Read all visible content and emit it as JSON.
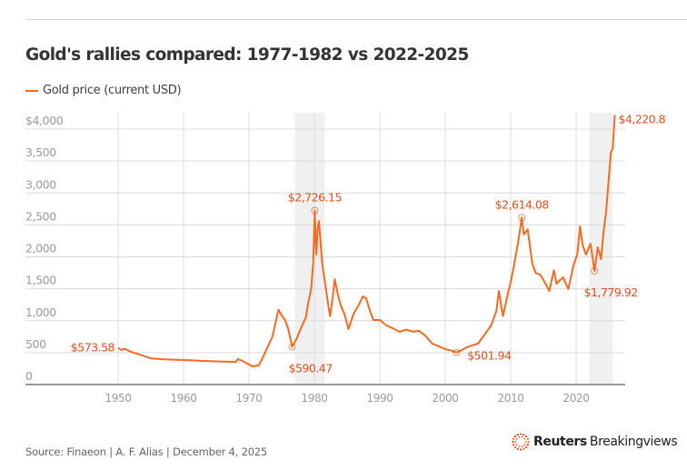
{
  "header": {
    "title": "Gold's rallies compared: 1977-1982 vs 2022-2025",
    "legend_label": "Gold price (current USD)"
  },
  "footer": {
    "source": "Source: Finaeon | A. F. Alias | December 4, 2025",
    "brand_bold": "Reuters",
    "brand_light": "Breakingviews",
    "brand_icon": "reuters-dotted-ring-logo"
  },
  "colors": {
    "line": "#f26b21",
    "annotation": "#e0501a",
    "shade": "#f0f0f0",
    "grid": "#dcdcdc",
    "tick_text": "#9a9a9a",
    "axis": "#999999"
  },
  "chart_data": {
    "type": "line",
    "title": "Gold's rallies compared: 1977-1982 vs 2022-2025",
    "xlabel": "",
    "ylabel": "",
    "xlim": [
      1936,
      2028
    ],
    "ylim": [
      0,
      4000
    ],
    "y_ticks": [
      0,
      500,
      1000,
      1500,
      2000,
      2500,
      3000,
      3500,
      4000
    ],
    "y_tick_labels": [
      "0",
      "500",
      "1,000",
      "1,500",
      "2,000",
      "2,500",
      "3,000",
      "3,500",
      "$4,000"
    ],
    "x_ticks": [
      1950,
      1960,
      1970,
      1980,
      1990,
      2000,
      2010,
      2020
    ],
    "x_tick_labels": [
      "1950",
      "1960",
      "1970",
      "1980",
      "1990",
      "2000",
      "2010",
      "2020"
    ],
    "grid": true,
    "legend": "top-left",
    "shaded_periods": [
      {
        "start": 1977,
        "end": 1982
      },
      {
        "start": 2022,
        "end": 2026
      }
    ],
    "series": [
      {
        "name": "Gold price (current USD)",
        "x": [
          1950,
          1950.5,
          1951,
          1952,
          1953,
          1955,
          1957,
          1960,
          1963,
          1966,
          1968,
          1968.3,
          1969,
          1970.5,
          1971.5,
          1972,
          1973,
          1973.6,
          1974.5,
          1975,
          1975.5,
          1976,
          1976.6,
          1977.3,
          1978,
          1978.7,
          1979,
          1979.5,
          1979.8,
          1980.05,
          1980.2,
          1980.3,
          1980.5,
          1980.7,
          1981,
          1981.2,
          1981.8,
          1982.1,
          1982.4,
          1982.8,
          1983.1,
          1983.6,
          1984,
          1984.6,
          1985.2,
          1986,
          1986.8,
          1987.4,
          1987.9,
          1988.5,
          1989,
          1990,
          1991,
          1992,
          1993,
          1994,
          1995,
          1996,
          1997,
          1998,
          1999,
          2000,
          2001,
          2001.7,
          2002.5,
          2003,
          2004,
          2005,
          2006,
          2007,
          2007.8,
          2008.2,
          2008.8,
          2009.5,
          2010,
          2010.5,
          2011.1,
          2011.7,
          2012,
          2012.6,
          2013.3,
          2013.8,
          2014.5,
          2015,
          2015.9,
          2016.6,
          2017,
          2018,
          2018.8,
          2019.6,
          2020.2,
          2020.6,
          2021,
          2021.5,
          2022.2,
          2022.5,
          2022.8,
          2023.3,
          2023.8,
          2024.2,
          2024.6,
          2025.0,
          2025.3,
          2025.6,
          2025.9
        ],
        "values": [
          573.58,
          540,
          560,
          510,
          480,
          410,
          395,
          385,
          370,
          360,
          355,
          400,
          370,
          285,
          300,
          400,
          620,
          755,
          1170,
          1080,
          1010,
          870,
          590.47,
          720,
          900,
          1050,
          1250,
          1500,
          1890,
          2726.15,
          2200,
          2035,
          2450,
          2560,
          2150,
          1890,
          1465,
          1250,
          1070,
          1380,
          1650,
          1400,
          1250,
          1100,
          870,
          1110,
          1250,
          1380,
          1350,
          1150,
          1010,
          1010,
          925,
          880,
          825,
          860,
          830,
          840,
          760,
          640,
          600,
          555,
          530,
          501.94,
          540,
          570,
          610,
          640,
          780,
          925,
          1150,
          1465,
          1070,
          1395,
          1600,
          1865,
          2205,
          2614.08,
          2350,
          2430,
          1890,
          1750,
          1720,
          1640,
          1465,
          1790,
          1580,
          1680,
          1495,
          1865,
          2050,
          2477,
          2180,
          2035,
          2205,
          2000,
          1779.92,
          2150,
          1965,
          2390,
          2720,
          3245,
          3630,
          3700,
          4220.8
        ]
      }
    ],
    "annotations": [
      {
        "label": "$573.58",
        "x": 1950,
        "y": 573.58,
        "marker": false
      },
      {
        "label": "$590.47",
        "x": 1976.6,
        "y": 590.47,
        "marker": true
      },
      {
        "label": "$2,726.15",
        "x": 1980.05,
        "y": 2726.15,
        "marker": true
      },
      {
        "label": "$501.94",
        "x": 2001.7,
        "y": 501.94,
        "marker": true
      },
      {
        "label": "$2,614.08",
        "x": 2011.7,
        "y": 2614.08,
        "marker": true
      },
      {
        "label": "$1,779.92",
        "x": 2022.8,
        "y": 1779.92,
        "marker": true
      },
      {
        "label": "$4,220.8",
        "x": 2025.9,
        "y": 4220.8,
        "marker": false
      }
    ]
  }
}
